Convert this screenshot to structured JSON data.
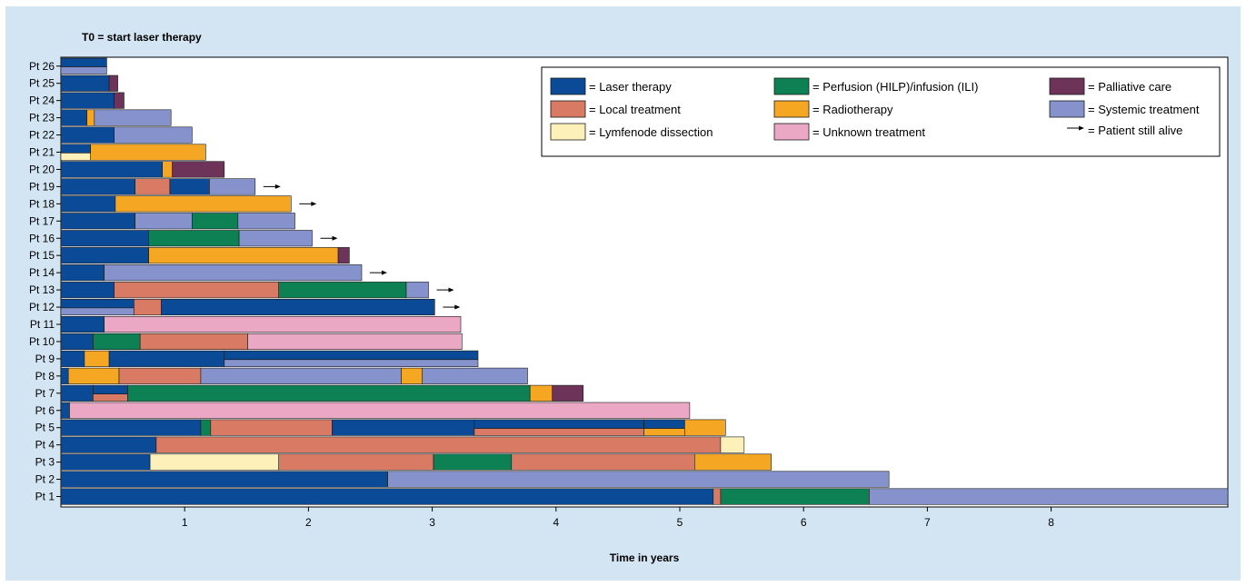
{
  "chart_data": {
    "type": "bar",
    "orientation": "horizontal-stacked-timeline",
    "title": "T0 = start laser therapy",
    "xlabel": "Time in years",
    "xlim": [
      0,
      9.45
    ],
    "xticks": [
      1,
      2,
      3,
      4,
      5,
      6,
      7,
      8
    ],
    "grid": false,
    "legend_placement": "top-right",
    "treatments": {
      "laser": {
        "label": "= Laser therapy",
        "color": "#0b4a96"
      },
      "perfusion": {
        "label": "= Perfusion (HILP)/infusion (ILI)",
        "color": "#0d8054"
      },
      "palliative": {
        "label": "= Palliative care",
        "color": "#6d3358"
      },
      "local": {
        "label": "= Local treatment",
        "color": "#d97a64"
      },
      "radio": {
        "label": "= Radiotherapy",
        "color": "#f5a623"
      },
      "systemic": {
        "label": "= Systemic treatment",
        "color": "#8592cb"
      },
      "lymph": {
        "label": "= Lymfenode dissection",
        "color": "#fdf0b8"
      },
      "unknown": {
        "label": "= Unknown treatment",
        "color": "#eba8c4"
      }
    },
    "alive_label": "= Patient still alive",
    "legend_order": [
      "laser",
      "perfusion",
      "palliative",
      "local",
      "radio",
      "systemic",
      "lymph",
      "unknown"
    ],
    "patients": [
      {
        "label": "Pt 26",
        "alive": false,
        "segments": [
          {
            "t": "laser",
            "s": 0,
            "e": 0.37,
            "track": "top"
          },
          {
            "t": "systemic",
            "s": 0,
            "e": 0.37,
            "track": "bottom"
          }
        ]
      },
      {
        "label": "Pt 25",
        "alive": false,
        "segments": [
          {
            "t": "laser",
            "s": 0,
            "e": 0.39
          },
          {
            "t": "palliative",
            "s": 0.39,
            "e": 0.46
          }
        ]
      },
      {
        "label": "Pt 24",
        "alive": false,
        "segments": [
          {
            "t": "laser",
            "s": 0,
            "e": 0.43
          },
          {
            "t": "palliative",
            "s": 0.43,
            "e": 0.51
          }
        ]
      },
      {
        "label": "Pt 23",
        "alive": false,
        "segments": [
          {
            "t": "laser",
            "s": 0,
            "e": 0.21
          },
          {
            "t": "radio",
            "s": 0.21,
            "e": 0.27
          },
          {
            "t": "systemic",
            "s": 0.27,
            "e": 0.89
          }
        ]
      },
      {
        "label": "Pt 22",
        "alive": false,
        "segments": [
          {
            "t": "laser",
            "s": 0,
            "e": 0.43
          },
          {
            "t": "systemic",
            "s": 0.43,
            "e": 1.06
          }
        ]
      },
      {
        "label": "Pt 21",
        "alive": false,
        "segments": [
          {
            "t": "laser",
            "s": 0,
            "e": 0.24,
            "track": "top"
          },
          {
            "t": "lymph",
            "s": 0,
            "e": 0.24,
            "track": "bottom"
          },
          {
            "t": "radio",
            "s": 0.24,
            "e": 1.17
          }
        ]
      },
      {
        "label": "Pt 20",
        "alive": false,
        "segments": [
          {
            "t": "laser",
            "s": 0,
            "e": 0.82
          },
          {
            "t": "radio",
            "s": 0.82,
            "e": 0.9
          },
          {
            "t": "palliative",
            "s": 0.9,
            "e": 1.32
          }
        ]
      },
      {
        "label": "Pt 19",
        "alive": true,
        "segments": [
          {
            "t": "laser",
            "s": 0,
            "e": 0.6
          },
          {
            "t": "local",
            "s": 0.6,
            "e": 0.88
          },
          {
            "t": "laser",
            "s": 0.88,
            "e": 1.2
          },
          {
            "t": "systemic",
            "s": 1.2,
            "e": 1.57
          }
        ]
      },
      {
        "label": "Pt 18",
        "alive": true,
        "segments": [
          {
            "t": "laser",
            "s": 0,
            "e": 0.44
          },
          {
            "t": "radio",
            "s": 0.44,
            "e": 1.86
          }
        ]
      },
      {
        "label": "Pt 17",
        "alive": false,
        "segments": [
          {
            "t": "laser",
            "s": 0,
            "e": 0.6
          },
          {
            "t": "systemic",
            "s": 0.6,
            "e": 1.06
          },
          {
            "t": "perfusion",
            "s": 1.06,
            "e": 1.43
          },
          {
            "t": "systemic",
            "s": 1.43,
            "e": 1.89
          }
        ]
      },
      {
        "label": "Pt 16",
        "alive": true,
        "segments": [
          {
            "t": "laser",
            "s": 0,
            "e": 0.71
          },
          {
            "t": "perfusion",
            "s": 0.71,
            "e": 1.44
          },
          {
            "t": "systemic",
            "s": 1.44,
            "e": 2.03
          }
        ]
      },
      {
        "label": "Pt 15",
        "alive": false,
        "segments": [
          {
            "t": "laser",
            "s": 0,
            "e": 0.71
          },
          {
            "t": "radio",
            "s": 0.71,
            "e": 2.24
          },
          {
            "t": "palliative",
            "s": 2.24,
            "e": 2.33
          }
        ]
      },
      {
        "label": "Pt 14",
        "alive": true,
        "segments": [
          {
            "t": "laser",
            "s": 0,
            "e": 0.35
          },
          {
            "t": "systemic",
            "s": 0.35,
            "e": 2.43
          }
        ]
      },
      {
        "label": "Pt 13",
        "alive": true,
        "segments": [
          {
            "t": "laser",
            "s": 0,
            "e": 0.43
          },
          {
            "t": "local",
            "s": 0.43,
            "e": 1.76
          },
          {
            "t": "perfusion",
            "s": 1.76,
            "e": 2.79
          },
          {
            "t": "systemic",
            "s": 2.79,
            "e": 2.97
          }
        ]
      },
      {
        "label": "Pt 12",
        "alive": true,
        "segments": [
          {
            "t": "laser",
            "s": 0,
            "e": 0.59,
            "track": "top"
          },
          {
            "t": "systemic",
            "s": 0,
            "e": 0.59,
            "track": "bottom"
          },
          {
            "t": "local",
            "s": 0.59,
            "e": 0.81
          },
          {
            "t": "laser",
            "s": 0.81,
            "e": 3.02
          }
        ]
      },
      {
        "label": "Pt 11",
        "alive": false,
        "segments": [
          {
            "t": "laser",
            "s": 0,
            "e": 0.35
          },
          {
            "t": "unknown",
            "s": 0.35,
            "e": 3.23
          }
        ]
      },
      {
        "label": "Pt 10",
        "alive": false,
        "segments": [
          {
            "t": "laser",
            "s": 0,
            "e": 0.26
          },
          {
            "t": "perfusion",
            "s": 0.26,
            "e": 0.64
          },
          {
            "t": "local",
            "s": 0.64,
            "e": 1.51
          },
          {
            "t": "unknown",
            "s": 1.51,
            "e": 3.24
          }
        ]
      },
      {
        "label": "Pt 9",
        "alive": false,
        "segments": [
          {
            "t": "laser",
            "s": 0,
            "e": 0.19
          },
          {
            "t": "radio",
            "s": 0.19,
            "e": 0.39
          },
          {
            "t": "laser",
            "s": 0.39,
            "e": 1.32
          },
          {
            "t": "laser",
            "s": 1.32,
            "e": 3.37,
            "track": "top"
          },
          {
            "t": "systemic",
            "s": 1.32,
            "e": 3.37,
            "track": "bottom"
          }
        ]
      },
      {
        "label": "Pt 8",
        "alive": false,
        "segments": [
          {
            "t": "laser",
            "s": 0,
            "e": 0.06
          },
          {
            "t": "radio",
            "s": 0.06,
            "e": 0.47
          },
          {
            "t": "local",
            "s": 0.47,
            "e": 1.13
          },
          {
            "t": "systemic",
            "s": 1.13,
            "e": 2.75
          },
          {
            "t": "radio",
            "s": 2.75,
            "e": 2.92
          },
          {
            "t": "systemic",
            "s": 2.92,
            "e": 3.77
          }
        ]
      },
      {
        "label": "Pt 7",
        "alive": false,
        "segments": [
          {
            "t": "laser",
            "s": 0,
            "e": 0.26
          },
          {
            "t": "laser",
            "s": 0.26,
            "e": 0.54,
            "track": "top"
          },
          {
            "t": "local",
            "s": 0.26,
            "e": 0.54,
            "track": "bottom"
          },
          {
            "t": "perfusion",
            "s": 0.54,
            "e": 3.79
          },
          {
            "t": "radio",
            "s": 3.79,
            "e": 3.97
          },
          {
            "t": "palliative",
            "s": 3.97,
            "e": 4.22
          }
        ]
      },
      {
        "label": "Pt 6",
        "alive": false,
        "segments": [
          {
            "t": "laser",
            "s": 0,
            "e": 0.07
          },
          {
            "t": "unknown",
            "s": 0.07,
            "e": 5.08
          }
        ]
      },
      {
        "label": "Pt 5",
        "alive": false,
        "segments": [
          {
            "t": "laser",
            "s": 0,
            "e": 1.13
          },
          {
            "t": "perfusion",
            "s": 1.13,
            "e": 1.21
          },
          {
            "t": "local",
            "s": 1.21,
            "e": 2.19
          },
          {
            "t": "laser",
            "s": 2.19,
            "e": 3.34
          },
          {
            "t": "laser",
            "s": 3.34,
            "e": 4.71,
            "track": "top"
          },
          {
            "t": "local",
            "s": 3.34,
            "e": 4.71,
            "track": "bottom"
          },
          {
            "t": "laser",
            "s": 4.71,
            "e": 5.04,
            "track": "top"
          },
          {
            "t": "radio",
            "s": 4.71,
            "e": 5.04,
            "track": "bottom"
          },
          {
            "t": "radio",
            "s": 5.04,
            "e": 5.37
          }
        ]
      },
      {
        "label": "Pt 4",
        "alive": false,
        "segments": [
          {
            "t": "laser",
            "s": 0,
            "e": 0.77
          },
          {
            "t": "local",
            "s": 0.77,
            "e": 5.33
          },
          {
            "t": "lymph",
            "s": 5.33,
            "e": 5.52
          }
        ]
      },
      {
        "label": "Pt 3",
        "alive": false,
        "segments": [
          {
            "t": "laser",
            "s": 0,
            "e": 0.72
          },
          {
            "t": "lymph",
            "s": 0.72,
            "e": 1.76
          },
          {
            "t": "local",
            "s": 1.76,
            "e": 3.01
          },
          {
            "t": "perfusion",
            "s": 3.01,
            "e": 3.64
          },
          {
            "t": "local",
            "s": 3.64,
            "e": 5.12
          },
          {
            "t": "radio",
            "s": 5.12,
            "e": 5.74
          }
        ]
      },
      {
        "label": "Pt 2",
        "alive": false,
        "segments": [
          {
            "t": "laser",
            "s": 0,
            "e": 2.64
          },
          {
            "t": "systemic",
            "s": 2.64,
            "e": 6.69
          }
        ]
      },
      {
        "label": "Pt 1",
        "alive": false,
        "segments": [
          {
            "t": "laser",
            "s": 0,
            "e": 5.27
          },
          {
            "t": "local",
            "s": 5.27,
            "e": 5.33
          },
          {
            "t": "perfusion",
            "s": 5.33,
            "e": 6.53
          },
          {
            "t": "systemic",
            "s": 6.53,
            "e": 9.45
          }
        ]
      }
    ]
  }
}
